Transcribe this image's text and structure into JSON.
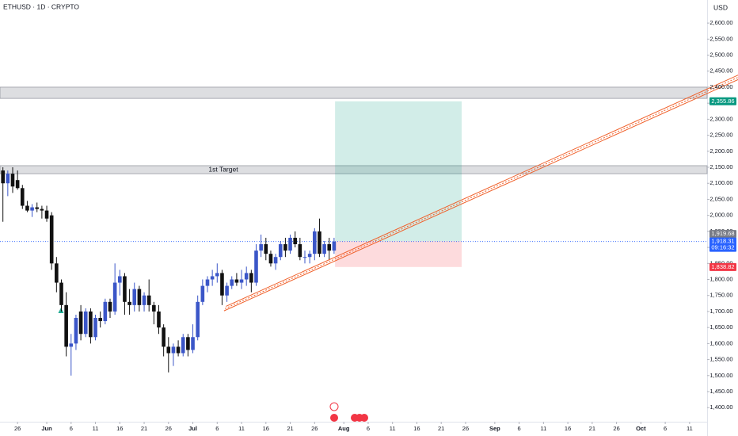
{
  "chart_data": {
    "type": "candlestick",
    "title": "ETHUSD · 1D · CRYPTO",
    "currency": "USD",
    "up_color": "#3b56c8",
    "down_color": "#111111",
    "x": [
      -3,
      -2,
      -1,
      0,
      1,
      2,
      3,
      4,
      5,
      6,
      7,
      8,
      9,
      10,
      11,
      12,
      13,
      14,
      15,
      16,
      17,
      18,
      19,
      20,
      21,
      22,
      23,
      24,
      25,
      26,
      27,
      28,
      29,
      30,
      31,
      32,
      33,
      34,
      35,
      36,
      37,
      38,
      39,
      40,
      41,
      42,
      43,
      44,
      45,
      46,
      47,
      48,
      49,
      50,
      51,
      52,
      53,
      54,
      55,
      56,
      57,
      58,
      59,
      60,
      61,
      62,
      63,
      64,
      65
    ],
    "open": [
      2140,
      2100,
      2130,
      2110,
      2085,
      2030,
      2015,
      2025,
      2020,
      2015,
      2000,
      1850,
      1790,
      1720,
      1590,
      1600,
      1700,
      1630,
      1700,
      1620,
      1680,
      1670,
      1730,
      1700,
      1790,
      1810,
      1730,
      1720,
      1770,
      1720,
      1750,
      1720,
      1700,
      1650,
      1590,
      1570,
      1590,
      1570,
      1620,
      1580,
      1620,
      1730,
      1780,
      1800,
      1810,
      1820,
      1750,
      1780,
      1800,
      1790,
      1800,
      1820,
      1790,
      1890,
      1910,
      1880,
      1850,
      1870,
      1910,
      1890,
      1930,
      1910,
      1870,
      1870,
      1880,
      1950,
      1880,
      1910,
      1890
    ],
    "high": [
      2150,
      2140,
      2150,
      2140,
      2095,
      2045,
      2035,
      2040,
      2030,
      2030,
      2010,
      1870,
      1800,
      1760,
      1630,
      1690,
      1720,
      1710,
      1710,
      1690,
      1700,
      1740,
      1740,
      1850,
      1830,
      1820,
      1770,
      1790,
      1780,
      1760,
      1800,
      1730,
      1720,
      1660,
      1620,
      1600,
      1610,
      1630,
      1630,
      1660,
      1750,
      1800,
      1810,
      1830,
      1850,
      1830,
      1790,
      1810,
      1820,
      1830,
      1840,
      1830,
      1910,
      1940,
      1930,
      1890,
      1880,
      1920,
      1930,
      1940,
      1950,
      1930,
      1890,
      1890,
      1960,
      1990,
      1920,
      1930,
      1930
    ],
    "low": [
      1980,
      2060,
      2070,
      2080,
      2020,
      2010,
      1995,
      2010,
      1990,
      1980,
      1830,
      1760,
      1700,
      1560,
      1500,
      1580,
      1610,
      1620,
      1600,
      1610,
      1650,
      1660,
      1680,
      1690,
      1750,
      1690,
      1690,
      1700,
      1700,
      1700,
      1700,
      1660,
      1630,
      1560,
      1510,
      1530,
      1560,
      1560,
      1560,
      1570,
      1610,
      1720,
      1760,
      1780,
      1790,
      1720,
      1730,
      1770,
      1780,
      1770,
      1780,
      1760,
      1780,
      1870,
      1860,
      1840,
      1830,
      1860,
      1870,
      1880,
      1900,
      1860,
      1850,
      1850,
      1860,
      1870,
      1870,
      1860,
      1880
    ],
    "close": [
      2100,
      2130,
      2090,
      2085,
      2030,
      2015,
      2025,
      2020,
      2015,
      1990,
      1850,
      1790,
      1720,
      1590,
      1600,
      1680,
      1630,
      1700,
      1620,
      1680,
      1670,
      1730,
      1700,
      1790,
      1810,
      1730,
      1720,
      1770,
      1720,
      1750,
      1720,
      1700,
      1650,
      1590,
      1570,
      1590,
      1570,
      1620,
      1580,
      1620,
      1730,
      1780,
      1800,
      1810,
      1820,
      1750,
      1780,
      1800,
      1790,
      1800,
      1820,
      1790,
      1890,
      1910,
      1880,
      1850,
      1870,
      1910,
      1890,
      1930,
      1910,
      1870,
      1870,
      1880,
      1950,
      1880,
      1910,
      1890,
      1918.31
    ],
    "xlim": [
      -3.6,
      141.6
    ],
    "xticks": [
      {
        "value": 0,
        "label": "26"
      },
      {
        "value": 6,
        "label": "Jun"
      },
      {
        "value": 11,
        "label": "6"
      },
      {
        "value": 16,
        "label": "11"
      },
      {
        "value": 21,
        "label": "16"
      },
      {
        "value": 26,
        "label": "21"
      },
      {
        "value": 31,
        "label": "26"
      },
      {
        "value": 36,
        "label": "Jul"
      },
      {
        "value": 41,
        "label": "6"
      },
      {
        "value": 46,
        "label": "11"
      },
      {
        "value": 51,
        "label": "16"
      },
      {
        "value": 56,
        "label": "21"
      },
      {
        "value": 61,
        "label": "26"
      },
      {
        "value": 67,
        "label": "Aug"
      },
      {
        "value": 72,
        "label": "6"
      },
      {
        "value": 77,
        "label": "11"
      },
      {
        "value": 82,
        "label": "16"
      },
      {
        "value": 87,
        "label": "21"
      },
      {
        "value": 92,
        "label": "26"
      },
      {
        "value": 98,
        "label": "Sep"
      },
      {
        "value": 103,
        "label": "6"
      },
      {
        "value": 108,
        "label": "11"
      },
      {
        "value": 113,
        "label": "16"
      },
      {
        "value": 118,
        "label": "21"
      },
      {
        "value": 123,
        "label": "26"
      },
      {
        "value": 128,
        "label": "Oct"
      },
      {
        "value": 133,
        "label": "6"
      },
      {
        "value": 138,
        "label": "11"
      }
    ],
    "ylim": [
      1356,
      2672
    ],
    "yticks": [
      {
        "value": 1400,
        "label": "1,400.00"
      },
      {
        "value": 1450,
        "label": "1,450.00"
      },
      {
        "value": 1500,
        "label": "1,500.00"
      },
      {
        "value": 1550,
        "label": "1,550.00"
      },
      {
        "value": 1600,
        "label": "1,600.00"
      },
      {
        "value": 1650,
        "label": "1,650.00"
      },
      {
        "value": 1700,
        "label": "1,700.00"
      },
      {
        "value": 1750,
        "label": "1,750.00"
      },
      {
        "value": 1800,
        "label": "1,800.00"
      },
      {
        "value": 1850,
        "label": "1,850.00"
      },
      {
        "value": 1900,
        "label": "1,900.00"
      },
      {
        "value": 1950,
        "label": "1,950.00"
      },
      {
        "value": 2000,
        "label": "2,000.00"
      },
      {
        "value": 2050,
        "label": "2,050.00"
      },
      {
        "value": 2100,
        "label": "2,100.00"
      },
      {
        "value": 2150,
        "label": "2,150.00"
      },
      {
        "value": 2200,
        "label": "2,200.00"
      },
      {
        "value": 2250,
        "label": "2,250.00"
      },
      {
        "value": 2300,
        "label": "2,300.00"
      },
      {
        "value": 2350,
        "label": "2,350.00"
      },
      {
        "value": 2400,
        "label": "2,400.00"
      },
      {
        "value": 2450,
        "label": "2,450.00"
      },
      {
        "value": 2500,
        "label": "2,500.00"
      },
      {
        "value": 2550,
        "label": "2,550.00"
      },
      {
        "value": 2600,
        "label": "2,600.00"
      }
    ],
    "zones": [
      {
        "label": "1st Target",
        "range": [
          2130,
          2155
        ]
      },
      {
        "range": [
          2365,
          2400
        ]
      }
    ],
    "position": {
      "x": [
        65.2,
        91.2
      ],
      "entry": 1919.68,
      "entry_label": "1,919.68",
      "target": 2355.86,
      "target_label": "2,355.86",
      "stop": 1838.82,
      "stop_label": "1,838.82"
    },
    "last_price": 1918.31,
    "last_price_label": "1,918.31",
    "countdown": "09:16:32",
    "trendlines": [
      {
        "x": [
          42.4,
          148
        ],
        "values": [
          1702,
          2424
        ],
        "dashed": false
      },
      {
        "x": [
          42.6,
          148
        ],
        "values": [
          1709,
          2431
        ],
        "dashed": true
      },
      {
        "x": [
          42.8,
          148
        ],
        "values": [
          1716,
          2438
        ],
        "dashed": false
      }
    ],
    "trendline_color": "#f0602a"
  }
}
